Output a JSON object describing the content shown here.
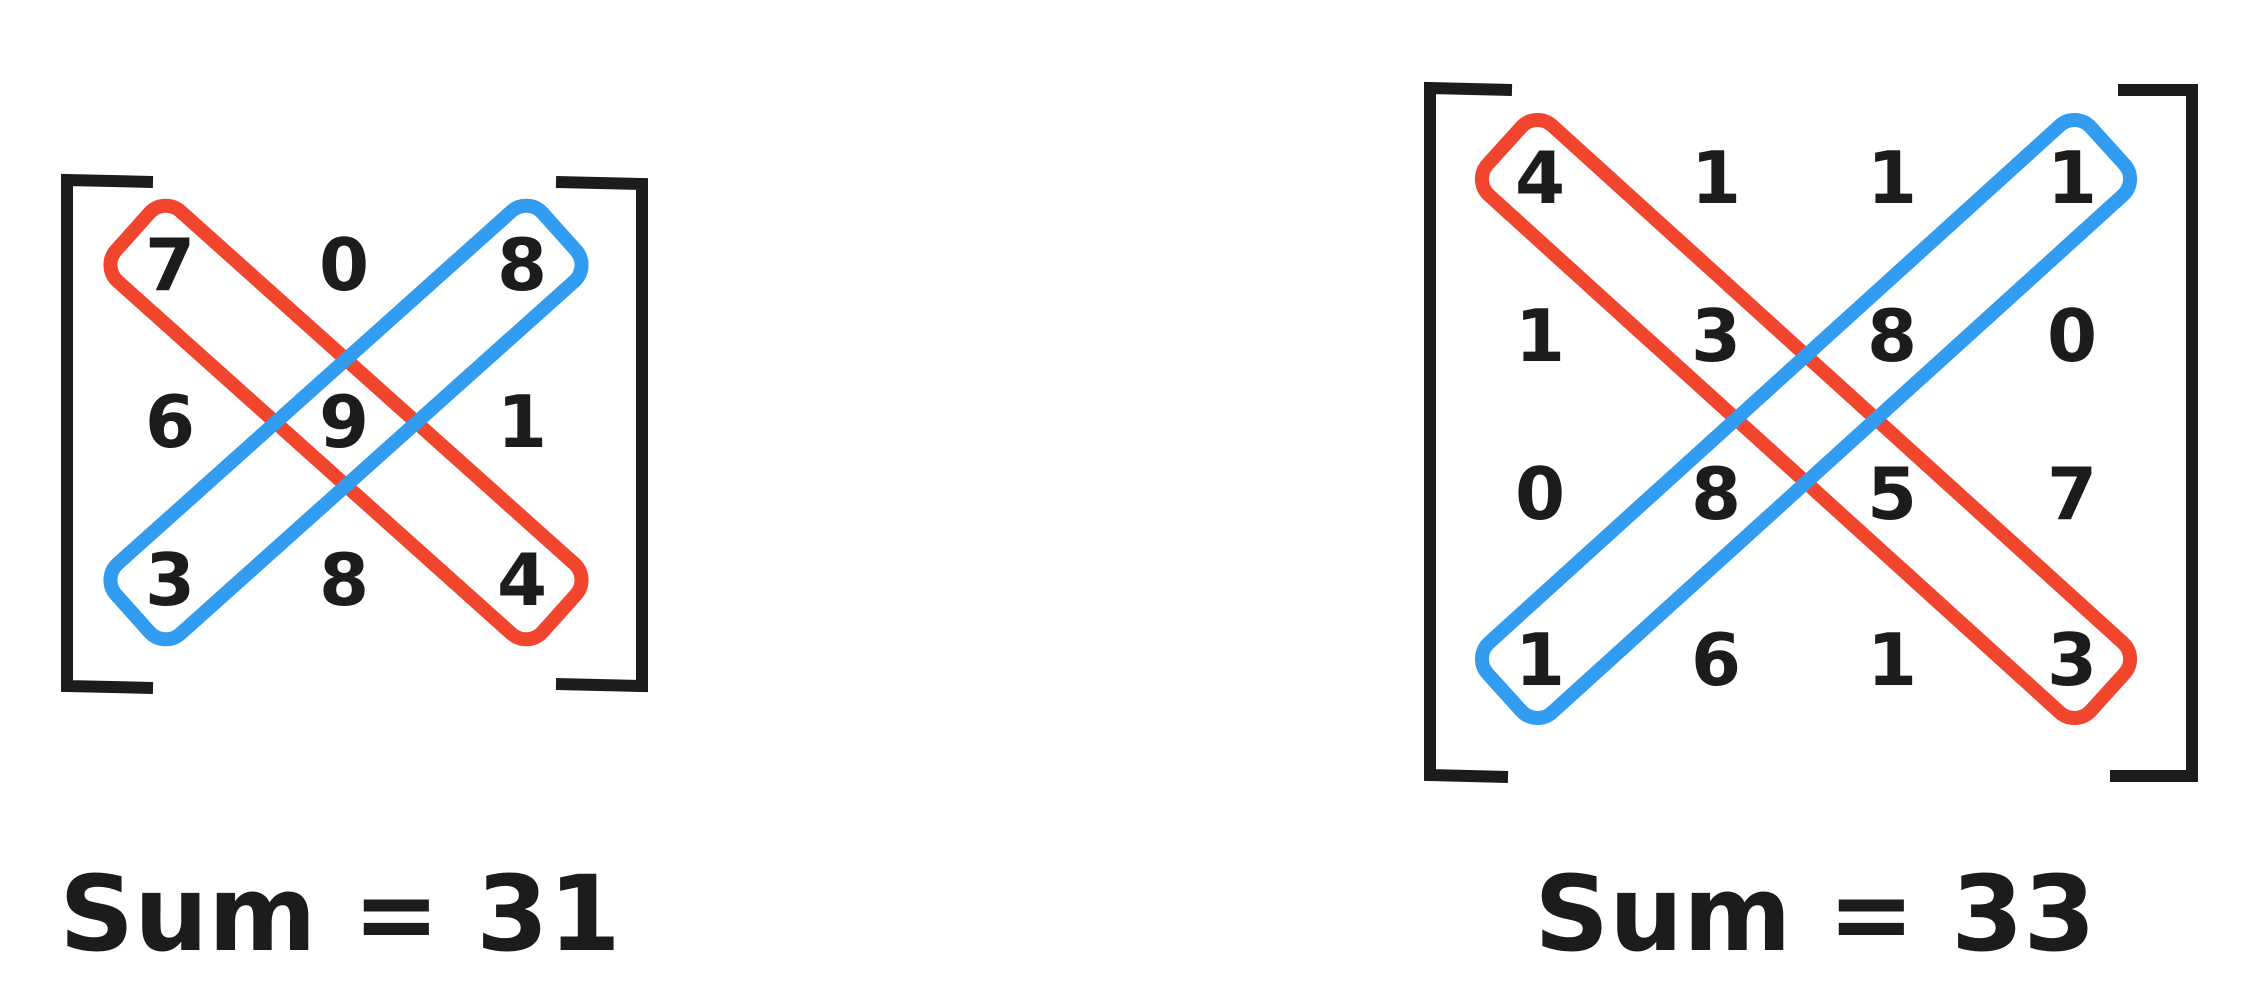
{
  "colors": {
    "ink": "#1c1c1c",
    "main_diagonal": "#f2452e",
    "anti_diagonal": "#329cf0",
    "background": "#ffffff"
  },
  "matrices": [
    {
      "name": "matrix-3x3",
      "rows": [
        [
          "7",
          "0",
          "8"
        ],
        [
          "6",
          "9",
          "1"
        ],
        [
          "3",
          "8",
          "4"
        ]
      ],
      "sum_label": "Sum = 31"
    },
    {
      "name": "matrix-4x4",
      "rows": [
        [
          "4",
          "1",
          "1",
          "1"
        ],
        [
          "1",
          "3",
          "8",
          "0"
        ],
        [
          "0",
          "8",
          "5",
          "7"
        ],
        [
          "1",
          "6",
          "1",
          "3"
        ]
      ],
      "sum_label": "Sum = 33"
    }
  ]
}
